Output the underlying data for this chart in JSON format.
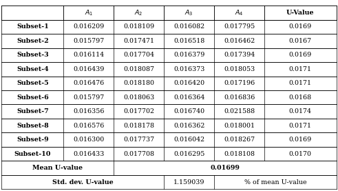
{
  "col_headers": [
    "",
    "A_1",
    "A_2",
    "A_3",
    "A_4",
    "U-Value"
  ],
  "rows": [
    [
      "Subset-1",
      "0.016209",
      "0.018109",
      "0.016082",
      "0.017795",
      "0.0169"
    ],
    [
      "Subset-2",
      "0.015797",
      "0.017471",
      "0.016518",
      "0.016462",
      "0.0167"
    ],
    [
      "Subset-3",
      "0.016114",
      "0.017704",
      "0.016379",
      "0.017394",
      "0.0169"
    ],
    [
      "Subset-4",
      "0.016439",
      "0.018087",
      "0.016373",
      "0.018053",
      "0.0171"
    ],
    [
      "Subset-5",
      "0.016476",
      "0.018180",
      "0.016420",
      "0.017196",
      "0.0171"
    ],
    [
      "Subset-6",
      "0.015797",
      "0.018063",
      "0.016364",
      "0.016836",
      "0.0168"
    ],
    [
      "Subset-7",
      "0.016356",
      "0.017702",
      "0.016740",
      "0.021588",
      "0.0174"
    ],
    [
      "Subset-8",
      "0.016576",
      "0.018178",
      "0.016362",
      "0.018001",
      "0.0171"
    ],
    [
      "Subset-9",
      "0.016300",
      "0.017737",
      "0.016042",
      "0.018267",
      "0.0169"
    ],
    [
      "Subset-10",
      "0.016433",
      "0.017708",
      "0.016295",
      "0.018108",
      "0.0170"
    ]
  ],
  "mean_value": "0.01699",
  "std_value": "1.159039",
  "std_label": "% of mean U-value",
  "background_color": "#ffffff",
  "border_color": "#000000",
  "fig_width": 4.91,
  "fig_height": 2.77,
  "dpi": 100
}
